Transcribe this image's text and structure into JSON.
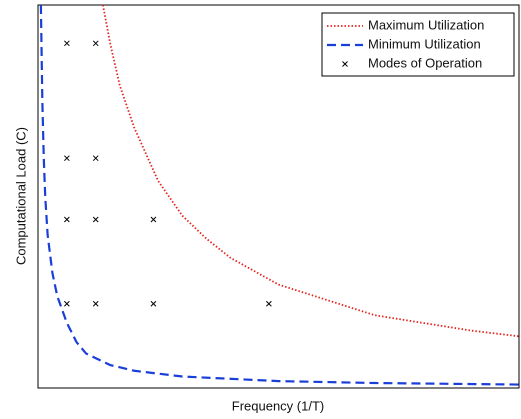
{
  "chart_data": {
    "type": "line",
    "xlabel": "Frequency (1/T)",
    "ylabel": "Computational Load (C)",
    "xlim": [
      0,
      1
    ],
    "ylim": [
      0,
      1
    ],
    "grid": false,
    "legend": "upper right",
    "series": [
      {
        "name": "Maximum Utilization",
        "color": "#e3231c",
        "style": "dotted",
        "x": [
          0.135,
          0.15,
          0.17,
          0.2,
          0.25,
          0.3,
          0.35,
          0.4,
          0.5,
          0.6,
          0.7,
          0.8,
          0.9,
          1.0
        ],
        "values": [
          1.0,
          0.9,
          0.79,
          0.68,
          0.54,
          0.45,
          0.39,
          0.34,
          0.27,
          0.23,
          0.19,
          0.17,
          0.15,
          0.135
        ]
      },
      {
        "name": "Minimum Utilization",
        "color": "#1a3fd8",
        "style": "dashed",
        "x": [
          0.006,
          0.009,
          0.012,
          0.015,
          0.02,
          0.03,
          0.04,
          0.06,
          0.08,
          0.1,
          0.15,
          0.2,
          0.3,
          0.5,
          0.7,
          1.0
        ],
        "values": [
          1.0,
          0.75,
          0.6,
          0.5,
          0.4,
          0.3,
          0.24,
          0.17,
          0.12,
          0.09,
          0.06,
          0.045,
          0.03,
          0.018,
          0.013,
          0.009
        ]
      },
      {
        "name": "Modes of Operation",
        "color": "#000000",
        "style": "markers",
        "x": [
          0.06,
          0.12,
          0.06,
          0.12,
          0.06,
          0.12,
          0.24,
          0.06,
          0.12,
          0.24,
          0.48
        ],
        "values": [
          0.9,
          0.9,
          0.6,
          0.6,
          0.44,
          0.44,
          0.44,
          0.22,
          0.22,
          0.22,
          0.22
        ]
      }
    ]
  }
}
